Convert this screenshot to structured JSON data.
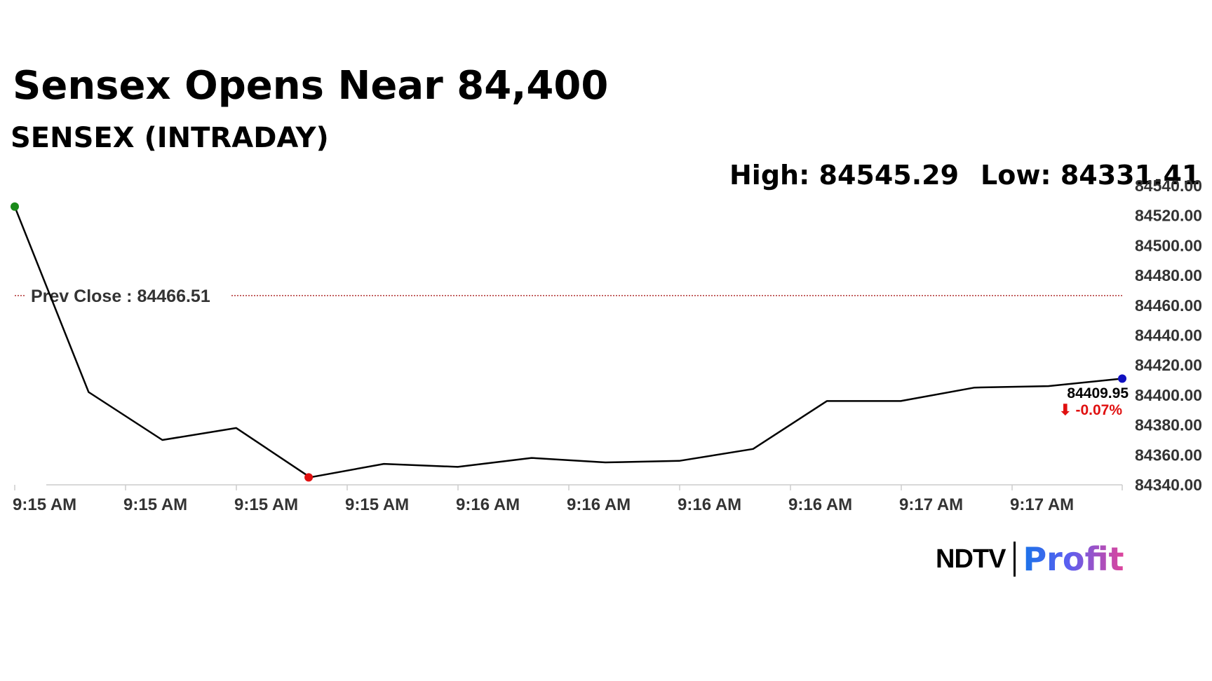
{
  "chart_data": {
    "type": "line",
    "title": "Sensex Opens Near 84,400",
    "subtitle": "SENSEX (INTRADAY)",
    "high_label": "High: 84545.29",
    "low_label": "Low: 84331.41",
    "x_tick_labels": [
      "9:15 AM",
      "9:15 AM",
      "9:15 AM",
      "9:15 AM",
      "9:16 AM",
      "9:16 AM",
      "9:16 AM",
      "9:16 AM",
      "9:17 AM",
      "9:17 AM"
    ],
    "y_tick_labels": [
      "84540.00",
      "84520.00",
      "84500.00",
      "84480.00",
      "84460.00",
      "84440.00",
      "84420.00",
      "84400.00",
      "84380.00",
      "84360.00",
      "84340.00"
    ],
    "ylim": [
      84340,
      84540
    ],
    "series": [
      {
        "values": [
          84526,
          84402,
          84370,
          84378,
          84345,
          84354,
          84352,
          84358,
          84355,
          84356,
          84364,
          84396,
          84396,
          84405,
          84406,
          84411
        ],
        "color": "#000000"
      }
    ],
    "prev_close": {
      "label": "Prev Close : 84466.51",
      "value": 84466.51,
      "color": "#b03030"
    },
    "last_value_label": "84409.95",
    "change_label": "⬇ -0.07%",
    "start_marker_color": "#1a8a1a",
    "low_marker_color": "#e01010",
    "end_marker_color": "#1010c0",
    "low_marker_index": 4,
    "grid": false,
    "legend": "none"
  },
  "logo": {
    "brand": "NDTV",
    "product": "Profit"
  }
}
